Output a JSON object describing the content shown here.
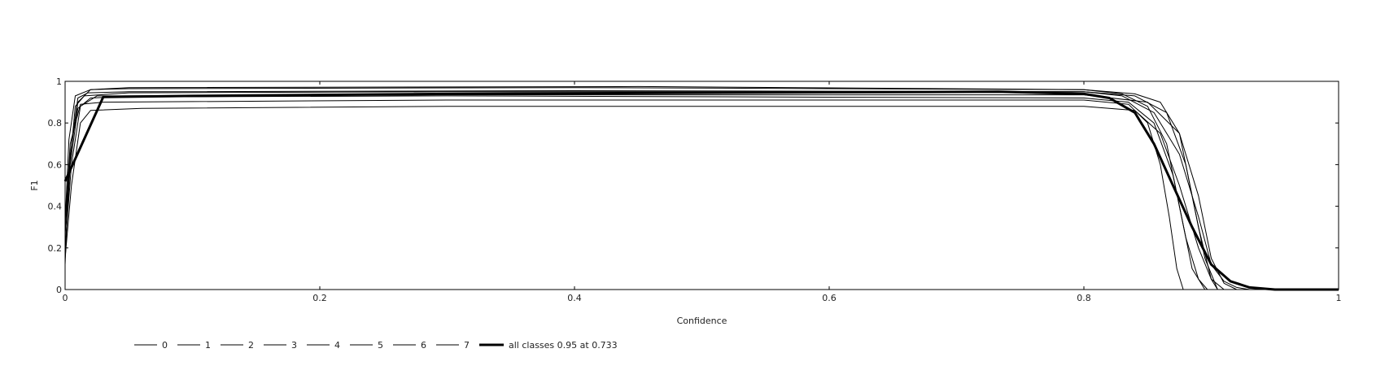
{
  "chart_data": {
    "type": "line",
    "title": "",
    "xlabel": "Confidence",
    "ylabel": "F1",
    "xlim": [
      0,
      1
    ],
    "ylim": [
      0,
      1
    ],
    "xticks": [
      "0",
      "0.2",
      "0.4",
      "0.6",
      "0.8",
      "1"
    ],
    "yticks": [
      "0",
      "0.2",
      "0.4",
      "0.6",
      "0.8",
      "1"
    ],
    "grid": false,
    "legend_position": "bottom-left",
    "line_color": "#000000",
    "series": [
      {
        "name": "0",
        "x": [
          0,
          0.003,
          0.008,
          0.015,
          0.05,
          0.3,
          0.6,
          0.8,
          0.83,
          0.855,
          0.875,
          0.89,
          0.9,
          0.91,
          0.92,
          0.93,
          1.0
        ],
        "y": [
          0.12,
          0.55,
          0.88,
          0.93,
          0.945,
          0.95,
          0.95,
          0.95,
          0.93,
          0.85,
          0.65,
          0.35,
          0.12,
          0.04,
          0.01,
          0.0,
          0.0
        ]
      },
      {
        "name": "1",
        "x": [
          0,
          0.003,
          0.01,
          0.02,
          0.05,
          0.4,
          0.8,
          0.83,
          0.85,
          0.865,
          0.875,
          0.885,
          0.895,
          1.0
        ],
        "y": [
          0.25,
          0.6,
          0.9,
          0.96,
          0.965,
          0.97,
          0.96,
          0.94,
          0.88,
          0.7,
          0.4,
          0.1,
          0.0,
          0.0
        ]
      },
      {
        "name": "2",
        "x": [
          0,
          0.004,
          0.012,
          0.03,
          0.3,
          0.8,
          0.835,
          0.85,
          0.86,
          0.867,
          0.873,
          0.878,
          1.0
        ],
        "y": [
          0.3,
          0.7,
          0.89,
          0.9,
          0.91,
          0.91,
          0.89,
          0.8,
          0.6,
          0.35,
          0.1,
          0.0,
          0.0
        ]
      },
      {
        "name": "3",
        "x": [
          0,
          0.005,
          0.012,
          0.02,
          0.06,
          0.3,
          0.6,
          0.8,
          0.84,
          0.86,
          0.875,
          0.89,
          0.9,
          0.91,
          1.0
        ],
        "y": [
          0.15,
          0.5,
          0.8,
          0.86,
          0.87,
          0.88,
          0.88,
          0.88,
          0.86,
          0.75,
          0.5,
          0.2,
          0.05,
          0.0,
          0.0
        ]
      },
      {
        "name": "4",
        "x": [
          0,
          0.004,
          0.01,
          0.018,
          0.05,
          0.4,
          0.8,
          0.84,
          0.865,
          0.88,
          0.89,
          0.9,
          0.905,
          1.0
        ],
        "y": [
          0.28,
          0.65,
          0.92,
          0.945,
          0.95,
          0.955,
          0.95,
          0.93,
          0.85,
          0.6,
          0.3,
          0.05,
          0.0,
          0.0
        ]
      },
      {
        "name": "5",
        "x": [
          0,
          0.005,
          0.012,
          0.025,
          0.3,
          0.8,
          0.85,
          0.875,
          0.89,
          0.9,
          0.91,
          0.92,
          1.0
        ],
        "y": [
          0.2,
          0.6,
          0.88,
          0.93,
          0.935,
          0.935,
          0.9,
          0.75,
          0.45,
          0.15,
          0.03,
          0.0,
          0.0
        ]
      },
      {
        "name": "6",
        "x": [
          0,
          0.003,
          0.008,
          0.02,
          0.05,
          0.45,
          0.8,
          0.84,
          0.86,
          0.875,
          0.885,
          0.895,
          0.905,
          1.0
        ],
        "y": [
          0.32,
          0.72,
          0.93,
          0.96,
          0.97,
          0.975,
          0.96,
          0.94,
          0.9,
          0.75,
          0.45,
          0.15,
          0.0,
          0.0
        ]
      },
      {
        "name": "7",
        "x": [
          0,
          0.004,
          0.01,
          0.02,
          0.04,
          0.3,
          0.8,
          0.835,
          0.855,
          0.87,
          0.88,
          0.89,
          0.897,
          1.0
        ],
        "y": [
          0.18,
          0.6,
          0.87,
          0.92,
          0.925,
          0.93,
          0.92,
          0.9,
          0.8,
          0.55,
          0.25,
          0.05,
          0.0,
          0.0
        ]
      },
      {
        "name": "all classes 0.95 at 0.733",
        "bold": true,
        "x": [
          0,
          0.03,
          0.1,
          0.3,
          0.5,
          0.733,
          0.8,
          0.82,
          0.84,
          0.855,
          0.87,
          0.885,
          0.9,
          0.915,
          0.93,
          0.95,
          1.0
        ],
        "y": [
          0.52,
          0.925,
          0.93,
          0.94,
          0.945,
          0.95,
          0.94,
          0.92,
          0.85,
          0.7,
          0.5,
          0.3,
          0.12,
          0.04,
          0.01,
          0.0,
          0.0
        ]
      }
    ]
  }
}
